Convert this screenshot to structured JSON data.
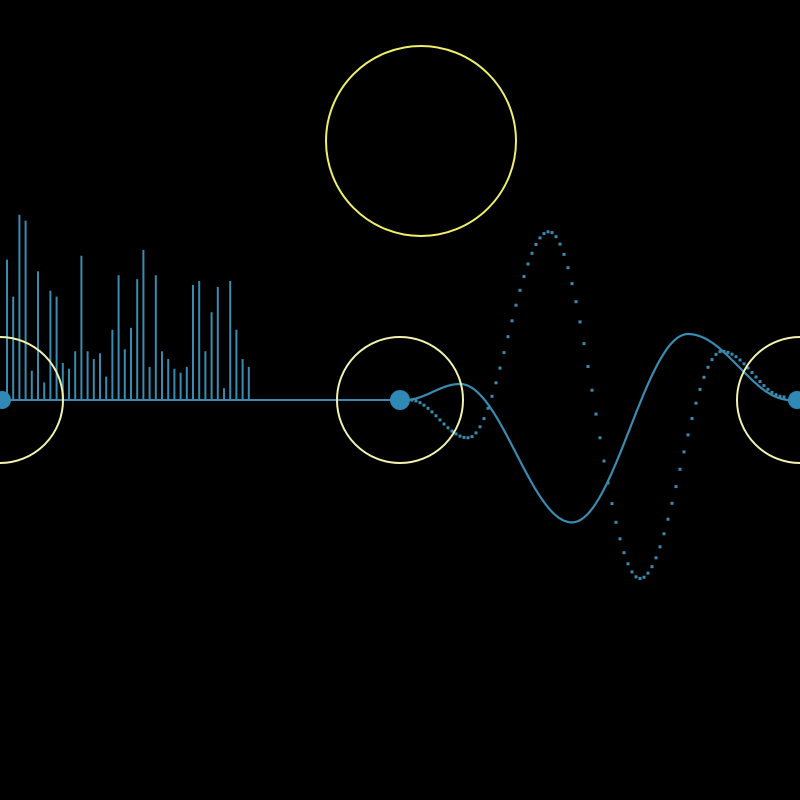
{
  "colors": {
    "background": "#000000",
    "wave": "#3a8bb0",
    "node": "#2e8ab4",
    "ring": "#f2f2b0",
    "big_ring": "#f0ef6a"
  },
  "bars": {
    "count": 40,
    "heights": [
      0.72,
      0.53,
      0.95,
      0.92,
      0.15,
      0.66,
      0.09,
      0.56,
      0.53,
      0.19,
      0.16,
      0.25,
      0.74,
      0.25,
      0.21,
      0.24,
      0.12,
      0.36,
      0.64,
      0.26,
      0.37,
      0.62,
      0.77,
      0.17,
      0.64,
      0.25,
      0.21,
      0.16,
      0.14,
      0.17,
      0.59,
      0.61,
      0.25,
      0.45,
      0.58,
      0.06,
      0.61,
      0.36,
      0.21,
      0.17
    ]
  },
  "wave": {
    "solid_amplitudes": [
      1.0,
      2.4,
      1.0
    ],
    "dotted_amplitudes": [
      -0.7,
      3.3,
      -3.5,
      0.9
    ]
  }
}
